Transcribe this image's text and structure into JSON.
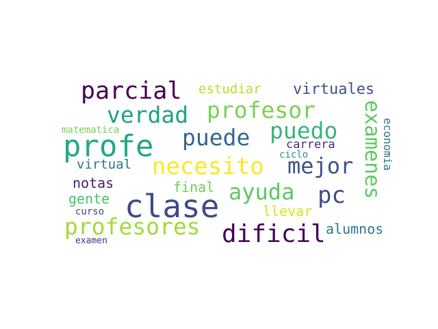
{
  "words": [
    {
      "text": "profe",
      "color": "#22a884"
    },
    {
      "text": "clase",
      "color": "#3e4a89"
    },
    {
      "text": "parcial",
      "color": "#440154"
    },
    {
      "text": "necesito",
      "color": "#fde725"
    },
    {
      "text": "profesor",
      "color": "#7ad151"
    },
    {
      "text": "verdad",
      "color": "#1f9e89"
    },
    {
      "text": "puedo",
      "color": "#35b779"
    },
    {
      "text": "puede",
      "color": "#31688e"
    },
    {
      "text": "mejor",
      "color": "#3b528b"
    },
    {
      "text": "ayuda",
      "color": "#5ec962"
    },
    {
      "text": "pc",
      "color": "#3e4a89"
    },
    {
      "text": "profesores",
      "color": "#a0da39"
    },
    {
      "text": "dificil",
      "color": "#440154"
    },
    {
      "text": "examenes",
      "color": "#5ec962"
    },
    {
      "text": "virtuales",
      "color": "#3b528b"
    },
    {
      "text": "estudiar",
      "color": "#b5de2b"
    },
    {
      "text": "carrera",
      "color": "#482878"
    },
    {
      "text": "economia",
      "color": "#2c728e"
    },
    {
      "text": "matematica",
      "color": "#7ad151"
    },
    {
      "text": "virtual",
      "color": "#2c728e"
    },
    {
      "text": "notas",
      "color": "#481a6c"
    },
    {
      "text": "final",
      "color": "#6ece58"
    },
    {
      "text": "gente",
      "color": "#4ac16d"
    },
    {
      "text": "ciclo",
      "color": "#21918c"
    },
    {
      "text": "llevar",
      "color": "#d8e219"
    },
    {
      "text": "alumnos",
      "color": "#2a788e"
    },
    {
      "text": "curso",
      "color": "#414487"
    },
    {
      "text": "examen",
      "color": "#46337e"
    }
  ]
}
